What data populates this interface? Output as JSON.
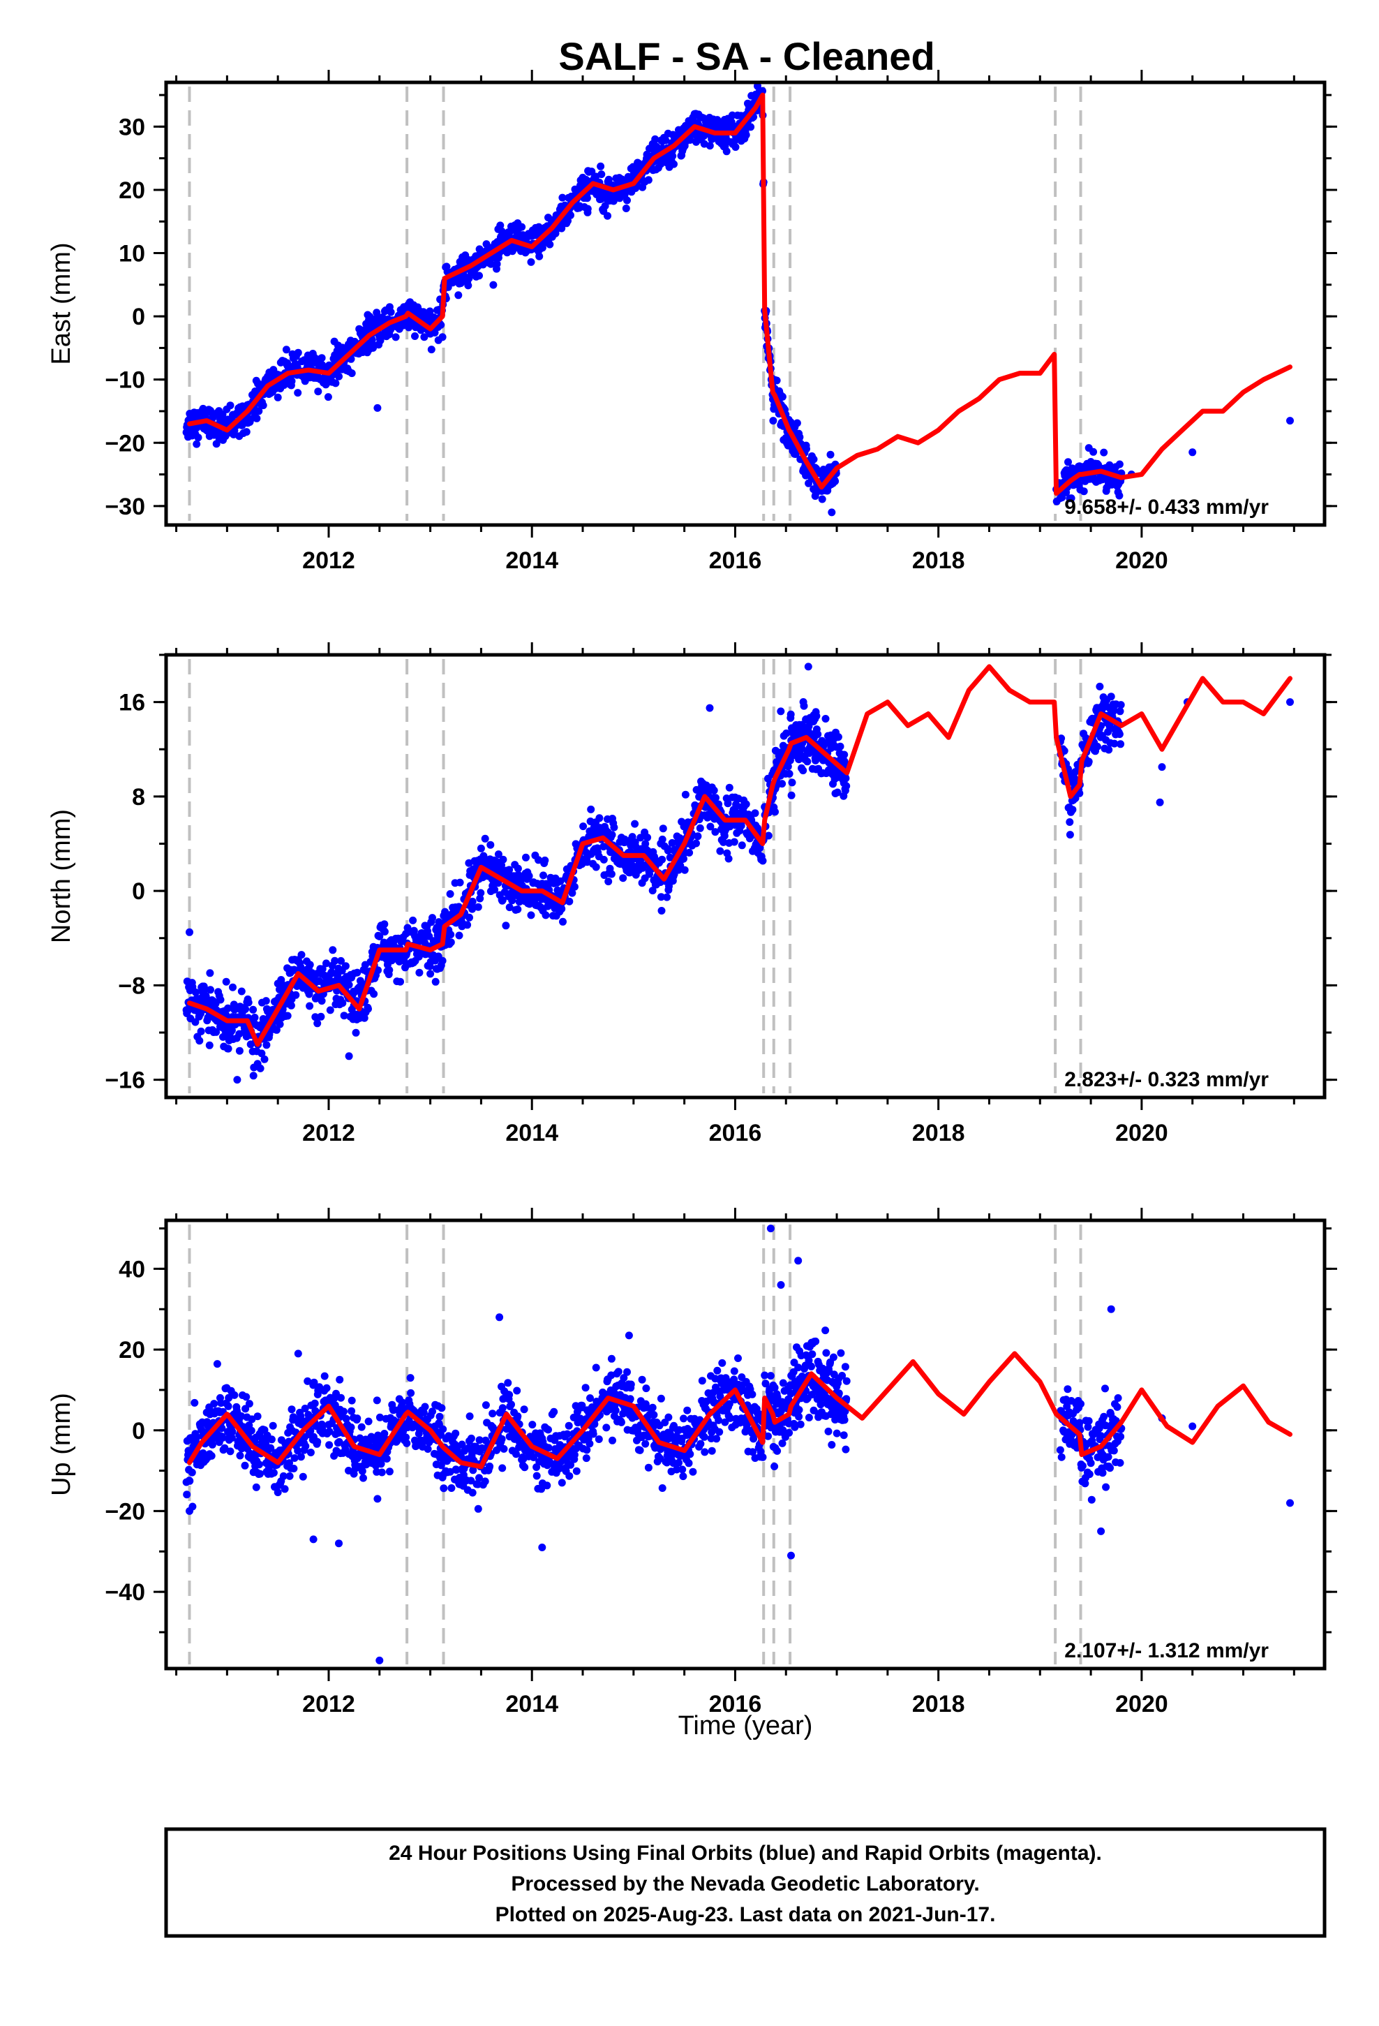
{
  "chart_data": {
    "type": "scatter",
    "title": "SALF  - SA - Cleaned",
    "xlabel": "Time (year)",
    "xlim": [
      2010.4,
      2021.8
    ],
    "xticks": [
      2012,
      2014,
      2016,
      2018,
      2020
    ],
    "xtick_labels": [
      "2012",
      "2014",
      "2016",
      "2018",
      "2020"
    ],
    "series_colors": {
      "data": "#0000ff",
      "model": "#ff0000",
      "steps": "#c0c0c0"
    },
    "step_epochs": [
      2010.63,
      2012.77,
      2013.13,
      2016.28,
      2016.38,
      2016.54,
      2019.15,
      2019.4
    ],
    "panels": [
      {
        "name": "East",
        "ylabel": "East (mm)",
        "ylim": [
          -33,
          37
        ],
        "yticks": [
          -30,
          -20,
          -10,
          0,
          10,
          20,
          30
        ],
        "ytick_labels": [
          "−30",
          "−20",
          "−10",
          "0",
          "10",
          "20",
          "30"
        ],
        "rate_label": "9.658+/- 0.433 mm/yr",
        "model": {
          "x": [
            2010.63,
            2010.8,
            2011.0,
            2011.2,
            2011.4,
            2011.6,
            2011.8,
            2012.0,
            2012.2,
            2012.4,
            2012.6,
            2012.76,
            2012.78,
            2013.0,
            2013.12,
            2013.14,
            2013.4,
            2013.6,
            2013.8,
            2014.0,
            2014.2,
            2014.4,
            2014.6,
            2014.8,
            2015.0,
            2015.2,
            2015.4,
            2015.6,
            2015.8,
            2016.0,
            2016.2,
            2016.27,
            2016.29,
            2016.37,
            2016.39,
            2016.53,
            2016.55,
            2016.7,
            2016.85,
            2017.0,
            2017.2,
            2017.4,
            2017.6,
            2017.8,
            2018.0,
            2018.2,
            2018.4,
            2018.6,
            2018.8,
            2019.0,
            2019.14,
            2019.16,
            2019.3,
            2019.39,
            2019.41,
            2019.6,
            2019.8,
            2020.0,
            2020.2,
            2020.4,
            2020.6,
            2020.8,
            2021.0,
            2021.2,
            2021.46
          ],
          "y": [
            -17,
            -16.5,
            -18,
            -15,
            -11,
            -9,
            -8.5,
            -9,
            -6,
            -3,
            -1,
            0,
            0.5,
            -2,
            0,
            6,
            8,
            10,
            12,
            11,
            14,
            18,
            21,
            20,
            21,
            25,
            27,
            30,
            29,
            29,
            33,
            35,
            1,
            -12,
            -12.5,
            -18,
            -18.5,
            -23,
            -27,
            -24,
            -22,
            -21,
            -19,
            -20,
            -18,
            -15,
            -13,
            -10,
            -9,
            -9,
            -6,
            -28,
            -26,
            -25,
            -25,
            -24.5,
            -25.5,
            -25,
            -21,
            -18,
            -15,
            -15,
            -12,
            -10,
            -8
          ]
        },
        "segments": [
          {
            "t0": 2010.6,
            "t1": 2016.28,
            "trend": [
              2010.6,
              -17,
              2016.28,
              33
            ],
            "amp": 1.5,
            "noise": 1.3,
            "step": 0.004,
            "dense": true
          },
          {
            "t0": 2016.29,
            "t1": 2017.0,
            "trend": [
              2016.29,
              1,
              2017.0,
              -27
            ],
            "amp": 1.0,
            "noise": 1.4,
            "step": 0.003,
            "dense": true
          },
          {
            "t0": 2019.16,
            "t1": 2019.8,
            "trend": [
              2019.16,
              -27,
              2019.8,
              -24
            ],
            "amp": 1.0,
            "noise": 1.2,
            "step": 0.004,
            "dense": true
          }
        ],
        "outliers": [
          [
            2012.48,
            -14.5
          ],
          [
            2014.55,
            17
          ],
          [
            2015.6,
            32
          ],
          [
            2016.95,
            -31
          ],
          [
            2019.9,
            -25
          ],
          [
            2020.5,
            -21.5
          ],
          [
            2021.46,
            -16.5
          ]
        ]
      },
      {
        "name": "North",
        "ylabel": "North (mm)",
        "ylim": [
          -17.5,
          20
        ],
        "yticks": [
          -16,
          -8,
          0,
          8,
          16
        ],
        "ytick_labels": [
          "−16",
          "−8",
          "0",
          "8",
          "16"
        ],
        "rate_label": "2.823+/- 0.323 mm/yr",
        "model": {
          "x": [
            2010.63,
            2010.8,
            2011.0,
            2011.2,
            2011.3,
            2011.5,
            2011.7,
            2011.9,
            2012.1,
            2012.3,
            2012.5,
            2012.76,
            2012.78,
            2013.0,
            2013.12,
            2013.14,
            2013.3,
            2013.5,
            2013.7,
            2013.9,
            2014.1,
            2014.3,
            2014.5,
            2014.7,
            2014.9,
            2015.1,
            2015.3,
            2015.5,
            2015.7,
            2015.9,
            2016.1,
            2016.27,
            2016.29,
            2016.37,
            2016.39,
            2016.53,
            2016.55,
            2016.7,
            2016.9,
            2017.1,
            2017.3,
            2017.5,
            2017.7,
            2017.9,
            2018.1,
            2018.3,
            2018.5,
            2018.7,
            2018.9,
            2019.14,
            2019.16,
            2019.3,
            2019.39,
            2019.41,
            2019.6,
            2019.8,
            2020.0,
            2020.2,
            2020.4,
            2020.6,
            2020.8,
            2021.0,
            2021.2,
            2021.46
          ],
          "y": [
            -9.5,
            -10,
            -11,
            -11,
            -13,
            -10,
            -7,
            -8.5,
            -8,
            -10,
            -5,
            -5,
            -4.5,
            -5,
            -4.5,
            -3,
            -2,
            2,
            1,
            0,
            0,
            -1,
            4,
            4.5,
            3,
            3,
            1,
            4,
            8,
            6,
            6,
            4,
            6,
            9,
            9.5,
            12,
            12.5,
            13,
            11.5,
            10,
            15,
            16,
            14,
            15,
            13,
            17,
            19,
            17,
            16,
            16,
            13,
            8,
            9,
            11,
            15,
            14,
            15,
            12,
            15,
            18,
            16,
            16,
            15,
            18
          ]
        },
        "segments": [
          {
            "t0": 2010.6,
            "t1": 2016.28,
            "trend": [
              2010.6,
              -10,
              2016.28,
              5
            ],
            "amp": 1.8,
            "noise": 1.1,
            "step": 0.004,
            "dense": true
          },
          {
            "t0": 2016.29,
            "t1": 2017.1,
            "trend": [
              2016.29,
              9,
              2017.1,
              11
            ],
            "amp": 2.0,
            "noise": 1.3,
            "step": 0.003,
            "dense": true
          },
          {
            "t0": 2019.2,
            "t1": 2019.8,
            "trend": [
              2019.2,
              8,
              2019.8,
              15
            ],
            "amp": 1.0,
            "noise": 1.1,
            "step": 0.004,
            "dense": true
          }
        ],
        "outliers": [
          [
            2010.63,
            -3.5
          ],
          [
            2011.1,
            -16
          ],
          [
            2012.2,
            -14
          ],
          [
            2015.75,
            15.5
          ],
          [
            2016.72,
            19
          ],
          [
            2020.18,
            7.5
          ],
          [
            2020.2,
            10.5
          ],
          [
            2020.45,
            16
          ],
          [
            2021.46,
            16
          ]
        ]
      },
      {
        "name": "Up",
        "ylabel": "Up (mm)",
        "ylim": [
          -59,
          52
        ],
        "yticks": [
          -40,
          -20,
          0,
          20,
          40
        ],
        "ytick_labels": [
          "−40",
          "−20",
          "0",
          "20",
          "40"
        ],
        "rate_label": "2.107+/- 1.312 mm/yr",
        "model": {
          "x": [
            2010.63,
            2010.75,
            2011.0,
            2011.25,
            2011.5,
            2011.75,
            2012.0,
            2012.25,
            2012.5,
            2012.76,
            2012.78,
            2013.0,
            2013.12,
            2013.14,
            2013.3,
            2013.5,
            2013.75,
            2014.0,
            2014.25,
            2014.5,
            2014.75,
            2015.0,
            2015.25,
            2015.5,
            2015.75,
            2016.0,
            2016.27,
            2016.29,
            2016.37,
            2016.39,
            2016.53,
            2016.55,
            2016.75,
            2017.0,
            2017.25,
            2017.5,
            2017.75,
            2018.0,
            2018.25,
            2018.5,
            2018.75,
            2019.0,
            2019.14,
            2019.16,
            2019.39,
            2019.41,
            2019.6,
            2019.8,
            2020.0,
            2020.25,
            2020.5,
            2020.75,
            2021.0,
            2021.25,
            2021.46
          ],
          "y": [
            -8,
            -3,
            4,
            -4,
            -8,
            0,
            6,
            -4,
            -6,
            4,
            4.5,
            0,
            -4,
            -4.5,
            -8,
            -9,
            4,
            -4,
            -7,
            0,
            8,
            6,
            -3,
            -5,
            4,
            10,
            -3,
            8,
            4,
            2,
            4,
            6,
            14,
            8,
            3,
            10,
            17,
            9,
            4,
            12,
            19,
            12,
            5,
            4,
            -1,
            -6,
            -4,
            2,
            10,
            1,
            -3,
            6,
            11,
            2,
            -1
          ]
        },
        "segments": [
          {
            "t0": 2010.6,
            "t1": 2016.28,
            "trend": [
              2010.6,
              0,
              2016.28,
              3
            ],
            "amp": 7.0,
            "noise": 4.0,
            "step": 0.004,
            "dense": true
          },
          {
            "t0": 2016.29,
            "t1": 2017.1,
            "trend": [
              2016.29,
              2,
              2017.1,
              10
            ],
            "amp": 6.0,
            "noise": 5.0,
            "step": 0.003,
            "dense": true
          },
          {
            "t0": 2019.2,
            "t1": 2019.8,
            "trend": [
              2019.2,
              -4,
              2019.8,
              5
            ],
            "amp": 4.0,
            "noise": 4.5,
            "step": 0.004,
            "dense": true
          }
        ],
        "outliers": [
          [
            2010.63,
            -20
          ],
          [
            2011.7,
            19
          ],
          [
            2011.85,
            -27
          ],
          [
            2012.1,
            -28
          ],
          [
            2012.5,
            -57
          ],
          [
            2013.68,
            28
          ],
          [
            2014.1,
            -29
          ],
          [
            2016.35,
            50
          ],
          [
            2016.45,
            36
          ],
          [
            2016.55,
            -31
          ],
          [
            2016.62,
            42
          ],
          [
            2019.7,
            30
          ],
          [
            2019.6,
            -25
          ],
          [
            2020.2,
            3
          ],
          [
            2020.5,
            1
          ],
          [
            2021.46,
            -18
          ]
        ]
      }
    ]
  },
  "footer": {
    "line1": "24 Hour Positions Using Final Orbits (blue) and Rapid Orbits (magenta).",
    "line2": "Processed by the Nevada Geodetic Laboratory.",
    "line3": "Plotted on 2025-Aug-23. Last data on 2021-Jun-17."
  }
}
